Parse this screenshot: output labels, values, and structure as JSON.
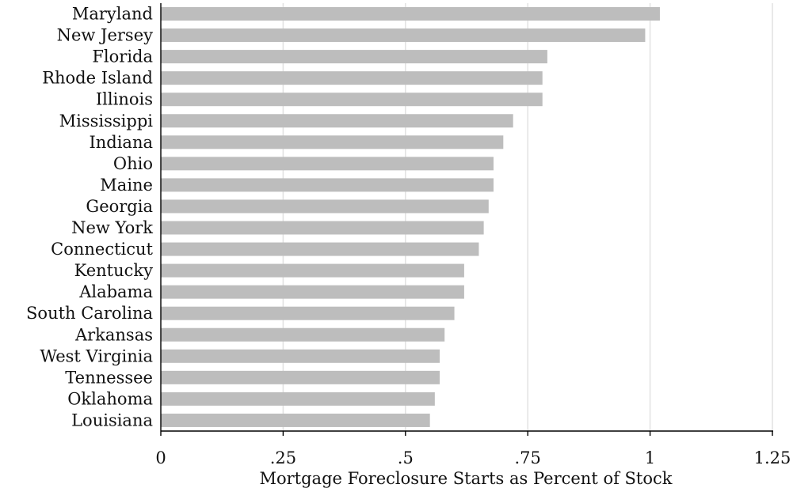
{
  "chart_data": {
    "type": "bar",
    "orientation": "horizontal",
    "categories": [
      "Maryland",
      "New Jersey",
      "Florida",
      "Rhode Island",
      "Illinois",
      "Mississippi",
      "Indiana",
      "Ohio",
      "Maine",
      "Georgia",
      "New York",
      "Connecticut",
      "Kentucky",
      "Alabama",
      "South Carolina",
      "Arkansas",
      "West Virginia",
      "Tennessee",
      "Oklahoma",
      "Louisiana"
    ],
    "values": [
      1.02,
      0.99,
      0.79,
      0.78,
      0.78,
      0.72,
      0.7,
      0.68,
      0.68,
      0.67,
      0.66,
      0.65,
      0.62,
      0.62,
      0.6,
      0.58,
      0.57,
      0.57,
      0.56,
      0.55
    ],
    "xlabel": "Mortgage Foreclosure Starts as Percent of Stock",
    "ylabel": "",
    "xlim": [
      0,
      1.25
    ],
    "ticks": [
      0,
      0.25,
      0.5,
      0.75,
      1,
      1.25
    ],
    "tick_labels": [
      "0",
      ".25",
      ".5",
      ".75",
      "1",
      "1.25"
    ],
    "grid": true,
    "bar_color": "#bdbdbd",
    "grid_color": "#e2e2e2"
  }
}
